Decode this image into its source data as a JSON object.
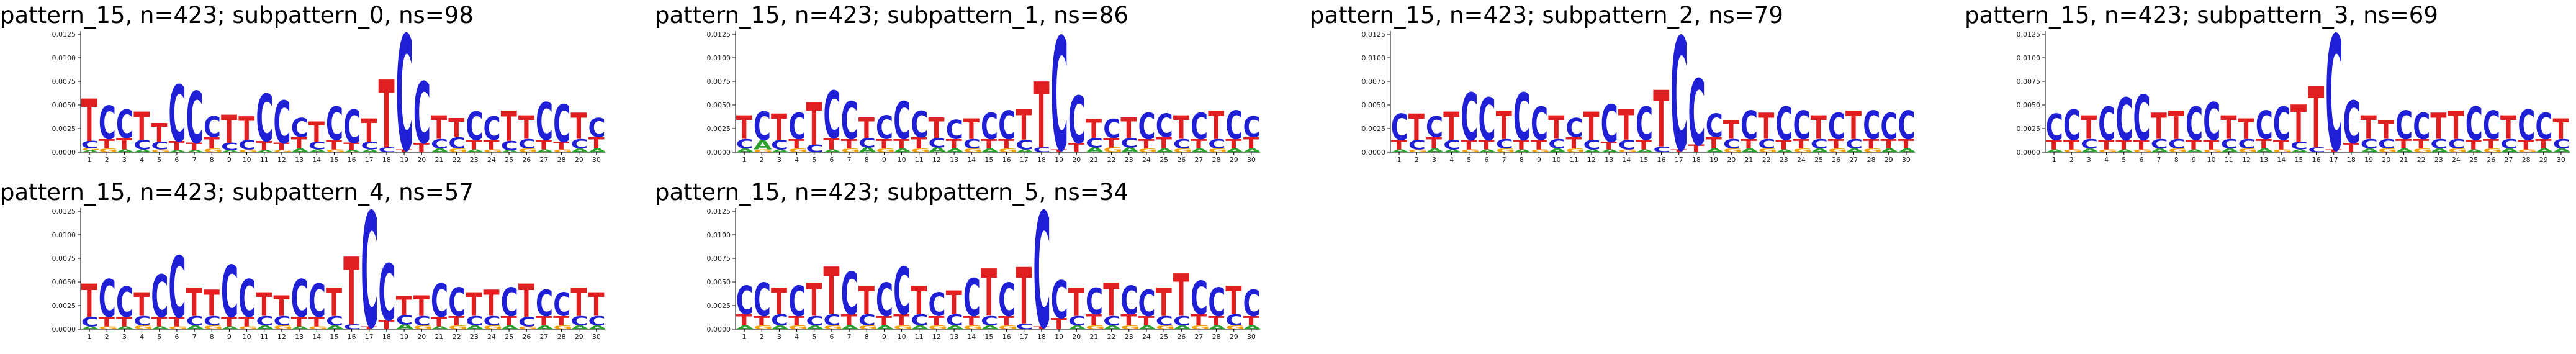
{
  "colors": {
    "A": "#2ca02c",
    "C": "#1f1fd6",
    "G": "#f0a000",
    "T": "#e02020"
  },
  "chart_data": [
    {
      "type": "logo",
      "title": "pattern_15, n=423; subpattern_0, ns=98",
      "ylim": [
        0,
        0.0125
      ],
      "yticks": [
        "0.0000",
        "0.0025",
        "0.0050",
        "0.0075",
        "0.0100",
        "0.0125"
      ],
      "positions": [
        "1",
        "2",
        "3",
        "4",
        "5",
        "6",
        "7",
        "8",
        "9",
        "10",
        "11",
        "12",
        "13",
        "14",
        "15",
        "16",
        "17",
        "18",
        "19",
        "20",
        "21",
        "22",
        "23",
        "24",
        "25",
        "26",
        "27",
        "28",
        "29",
        "30"
      ],
      "heights": [
        {
          "T": 0.0045,
          "C": 0.0008,
          "A": 0.0002,
          "G": 0.0002
        },
        {
          "C": 0.0035,
          "T": 0.001,
          "G": 0.0004
        },
        {
          "C": 0.003,
          "T": 0.0012,
          "A": 0.0003
        },
        {
          "T": 0.003,
          "C": 0.001,
          "A": 0.0003
        },
        {
          "T": 0.002,
          "C": 0.0008,
          "G": 0.0003
        },
        {
          "C": 0.006,
          "T": 0.001,
          "A": 0.0002
        },
        {
          "C": 0.0055,
          "T": 0.0008,
          "A": 0.0002
        },
        {
          "C": 0.0022,
          "T": 0.0012,
          "G": 0.0004
        },
        {
          "T": 0.003,
          "C": 0.0008,
          "A": 0.0002
        },
        {
          "T": 0.0025,
          "C": 0.001,
          "G": 0.0003
        },
        {
          "C": 0.005,
          "T": 0.001,
          "A": 0.0002
        },
        {
          "C": 0.0045,
          "T": 0.0008,
          "G": 0.0002
        },
        {
          "C": 0.002,
          "T": 0.0012,
          "A": 0.0004
        },
        {
          "T": 0.0022,
          "C": 0.0008,
          "A": 0.0003
        },
        {
          "C": 0.0035,
          "T": 0.001,
          "G": 0.0003
        },
        {
          "C": 0.0035,
          "T": 0.0008,
          "A": 0.0002
        },
        {
          "T": 0.0025,
          "C": 0.0008,
          "A": 0.0003
        },
        {
          "T": 0.0072,
          "C": 0.0005
        },
        {
          "C": 0.0122,
          "T": 0.0003
        },
        {
          "C": 0.0065,
          "T": 0.001
        },
        {
          "T": 0.0025,
          "C": 0.001,
          "A": 0.0004
        },
        {
          "T": 0.002,
          "C": 0.0012,
          "G": 0.0004
        },
        {
          "C": 0.003,
          "T": 0.001,
          "A": 0.0003
        },
        {
          "C": 0.0025,
          "T": 0.001,
          "G": 0.0003
        },
        {
          "T": 0.0032,
          "C": 0.001,
          "A": 0.0002
        },
        {
          "T": 0.0025,
          "C": 0.001,
          "G": 0.0004
        },
        {
          "C": 0.004,
          "T": 0.001,
          "A": 0.0003
        },
        {
          "C": 0.004,
          "T": 0.0008,
          "G": 0.0003
        },
        {
          "T": 0.0028,
          "C": 0.001,
          "A": 0.0004
        },
        {
          "C": 0.002,
          "T": 0.0012,
          "A": 0.0004
        }
      ]
    },
    {
      "type": "logo",
      "title": "pattern_15, n=423; subpattern_1, ns=86",
      "ylim": [
        0,
        0.0125
      ],
      "yticks": [
        "0.0000",
        "0.0025",
        "0.0050",
        "0.0075",
        "0.0100",
        "0.0125"
      ],
      "positions": [
        "1",
        "2",
        "3",
        "4",
        "5",
        "6",
        "7",
        "8",
        "9",
        "10",
        "11",
        "12",
        "13",
        "14",
        "15",
        "16",
        "17",
        "18",
        "19",
        "20",
        "21",
        "22",
        "23",
        "24",
        "25",
        "26",
        "27",
        "28",
        "29",
        "30"
      ],
      "heights": [
        {
          "T": 0.0025,
          "C": 0.001,
          "A": 0.0004
        },
        {
          "C": 0.003,
          "A": 0.001,
          "G": 0.0003
        },
        {
          "T": 0.0028,
          "C": 0.001,
          "A": 0.0003
        },
        {
          "C": 0.0028,
          "T": 0.001,
          "G": 0.0004
        },
        {
          "T": 0.0045,
          "C": 0.0008
        },
        {
          "C": 0.005,
          "T": 0.0012,
          "A": 0.0003
        },
        {
          "C": 0.004,
          "T": 0.001,
          "G": 0.0004
        },
        {
          "T": 0.0022,
          "C": 0.001,
          "A": 0.0005
        },
        {
          "C": 0.0025,
          "T": 0.001,
          "G": 0.0004
        },
        {
          "C": 0.004,
          "T": 0.001,
          "A": 0.0004
        },
        {
          "C": 0.0028,
          "T": 0.0012,
          "G": 0.0004
        },
        {
          "T": 0.0022,
          "C": 0.001,
          "A": 0.0005
        },
        {
          "C": 0.002,
          "T": 0.001,
          "A": 0.0004
        },
        {
          "T": 0.0022,
          "C": 0.001,
          "G": 0.0004
        },
        {
          "C": 0.0028,
          "T": 0.001,
          "A": 0.0004
        },
        {
          "C": 0.003,
          "T": 0.001,
          "G": 0.0004
        },
        {
          "T": 0.0032,
          "C": 0.001,
          "A": 0.0003
        },
        {
          "T": 0.007,
          "C": 0.0005
        },
        {
          "C": 0.012,
          "T": 0.0003
        },
        {
          "C": 0.005,
          "T": 0.001
        },
        {
          "T": 0.002,
          "C": 0.001,
          "A": 0.0005
        },
        {
          "C": 0.002,
          "T": 0.001,
          "G": 0.0005
        },
        {
          "T": 0.0022,
          "C": 0.001,
          "A": 0.0005
        },
        {
          "C": 0.0028,
          "T": 0.001,
          "G": 0.0004
        },
        {
          "C": 0.0025,
          "T": 0.0012,
          "A": 0.0004
        },
        {
          "T": 0.0025,
          "C": 0.001,
          "G": 0.0004
        },
        {
          "C": 0.0028,
          "T": 0.001,
          "A": 0.0004
        },
        {
          "T": 0.003,
          "C": 0.001,
          "G": 0.0004
        },
        {
          "C": 0.003,
          "T": 0.001,
          "A": 0.0004
        },
        {
          "C": 0.0022,
          "T": 0.0012,
          "A": 0.0004
        }
      ]
    },
    {
      "type": "logo",
      "title": "pattern_15, n=423; subpattern_2, ns=79",
      "ylim": [
        0,
        0.0125
      ],
      "yticks": [
        "0.0000",
        "0.0025",
        "0.0050",
        "0.0075",
        "0.0100",
        "0.0125"
      ],
      "positions": [
        "1",
        "2",
        "3",
        "4",
        "5",
        "6",
        "7",
        "8",
        "9",
        "10",
        "11",
        "12",
        "13",
        "14",
        "15",
        "16",
        "17",
        "18",
        "19",
        "20",
        "21",
        "22",
        "23",
        "24",
        "25",
        "26",
        "27",
        "28",
        "29",
        "30"
      ],
      "heights": [
        {
          "C": 0.0028,
          "T": 0.001,
          "A": 0.0003
        },
        {
          "T": 0.0028,
          "C": 0.001,
          "G": 0.0003
        },
        {
          "C": 0.0022,
          "T": 0.0012,
          "A": 0.0004
        },
        {
          "T": 0.003,
          "C": 0.001,
          "A": 0.0003
        },
        {
          "C": 0.005,
          "T": 0.001,
          "G": 0.0003
        },
        {
          "C": 0.0045,
          "T": 0.001,
          "A": 0.0003
        },
        {
          "T": 0.003,
          "C": 0.001,
          "G": 0.0004
        },
        {
          "C": 0.005,
          "T": 0.001,
          "A": 0.0003
        },
        {
          "C": 0.0035,
          "T": 0.001,
          "G": 0.0003
        },
        {
          "T": 0.0025,
          "C": 0.001,
          "A": 0.0004
        },
        {
          "C": 0.002,
          "T": 0.0012,
          "G": 0.0004
        },
        {
          "T": 0.003,
          "C": 0.001,
          "A": 0.0003
        },
        {
          "C": 0.004,
          "T": 0.0008,
          "A": 0.0003
        },
        {
          "T": 0.0032,
          "C": 0.001,
          "G": 0.0003
        },
        {
          "C": 0.0035,
          "T": 0.001,
          "A": 0.0003
        },
        {
          "T": 0.006,
          "C": 0.0006
        },
        {
          "C": 0.012,
          "T": 0.0003
        },
        {
          "C": 0.007,
          "T": 0.0008
        },
        {
          "C": 0.0025,
          "T": 0.0012,
          "A": 0.0004
        },
        {
          "T": 0.002,
          "C": 0.001,
          "G": 0.0004
        },
        {
          "C": 0.003,
          "T": 0.001,
          "A": 0.0004
        },
        {
          "T": 0.0028,
          "C": 0.001,
          "G": 0.0004
        },
        {
          "C": 0.0035,
          "T": 0.001,
          "A": 0.0003
        },
        {
          "C": 0.003,
          "T": 0.001,
          "G": 0.0004
        },
        {
          "T": 0.0025,
          "C": 0.001,
          "A": 0.0004
        },
        {
          "C": 0.0028,
          "T": 0.001,
          "G": 0.0004
        },
        {
          "T": 0.003,
          "C": 0.001,
          "A": 0.0004
        },
        {
          "C": 0.003,
          "T": 0.001,
          "G": 0.0004
        },
        {
          "C": 0.0028,
          "T": 0.001,
          "A": 0.0004
        },
        {
          "C": 0.003,
          "T": 0.001,
          "A": 0.0004
        }
      ]
    },
    {
      "type": "logo",
      "title": "pattern_15, n=423; subpattern_3, ns=69",
      "ylim": [
        0,
        0.0125
      ],
      "yticks": [
        "0.0000",
        "0.0025",
        "0.0050",
        "0.0075",
        "0.0100",
        "0.0125"
      ],
      "positions": [
        "1",
        "2",
        "3",
        "4",
        "5",
        "6",
        "7",
        "8",
        "9",
        "10",
        "11",
        "12",
        "13",
        "14",
        "15",
        "16",
        "17",
        "18",
        "19",
        "20",
        "21",
        "22",
        "23",
        "24",
        "25",
        "26",
        "27",
        "28",
        "29",
        "30"
      ],
      "heights": [
        {
          "C": 0.0028,
          "T": 0.001,
          "A": 0.0003
        },
        {
          "C": 0.0032,
          "T": 0.001,
          "G": 0.0003
        },
        {
          "T": 0.0025,
          "C": 0.001,
          "A": 0.0004
        },
        {
          "C": 0.0035,
          "T": 0.001,
          "G": 0.0003
        },
        {
          "C": 0.0045,
          "T": 0.001,
          "A": 0.0003
        },
        {
          "C": 0.0048,
          "T": 0.001,
          "G": 0.0003
        },
        {
          "T": 0.0028,
          "C": 0.001,
          "A": 0.0004
        },
        {
          "T": 0.003,
          "C": 0.001,
          "G": 0.0004
        },
        {
          "C": 0.0035,
          "T": 0.001,
          "A": 0.0003
        },
        {
          "C": 0.004,
          "T": 0.001,
          "G": 0.0003
        },
        {
          "T": 0.0025,
          "C": 0.001,
          "A": 0.0004
        },
        {
          "T": 0.0022,
          "C": 0.001,
          "G": 0.0004
        },
        {
          "C": 0.003,
          "T": 0.001,
          "A": 0.0004
        },
        {
          "C": 0.0035,
          "T": 0.001,
          "G": 0.0003
        },
        {
          "T": 0.004,
          "C": 0.0008,
          "A": 0.0003
        },
        {
          "T": 0.0065,
          "C": 0.0005
        },
        {
          "C": 0.0122,
          "T": 0.0003
        },
        {
          "C": 0.0045,
          "T": 0.001
        },
        {
          "T": 0.0025,
          "C": 0.001,
          "A": 0.0004
        },
        {
          "T": 0.002,
          "C": 0.001,
          "G": 0.0004
        },
        {
          "C": 0.003,
          "T": 0.001,
          "A": 0.0004
        },
        {
          "C": 0.0028,
          "T": 0.001,
          "G": 0.0004
        },
        {
          "T": 0.0028,
          "C": 0.001,
          "A": 0.0004
        },
        {
          "T": 0.003,
          "C": 0.001,
          "G": 0.0004
        },
        {
          "C": 0.0035,
          "T": 0.001,
          "A": 0.0003
        },
        {
          "C": 0.003,
          "T": 0.001,
          "G": 0.0004
        },
        {
          "T": 0.0025,
          "C": 0.001,
          "A": 0.0004
        },
        {
          "C": 0.0032,
          "T": 0.001,
          "G": 0.0003
        },
        {
          "C": 0.0028,
          "T": 0.001,
          "A": 0.0004
        },
        {
          "T": 0.0022,
          "C": 0.001,
          "A": 0.0004
        }
      ]
    },
    {
      "type": "logo",
      "title": "pattern_15, n=423; subpattern_4, ns=57",
      "ylim": [
        0,
        0.0125
      ],
      "yticks": [
        "0.0000",
        "0.0025",
        "0.0050",
        "0.0075",
        "0.0100",
        "0.0125"
      ],
      "positions": [
        "1",
        "2",
        "3",
        "4",
        "5",
        "6",
        "7",
        "8",
        "9",
        "10",
        "11",
        "12",
        "13",
        "14",
        "15",
        "16",
        "17",
        "18",
        "19",
        "20",
        "21",
        "22",
        "23",
        "24",
        "25",
        "26",
        "27",
        "28",
        "29",
        "30"
      ],
      "heights": [
        {
          "T": 0.0035,
          "C": 0.001,
          "A": 0.0003
        },
        {
          "C": 0.004,
          "T": 0.001,
          "G": 0.0003
        },
        {
          "C": 0.0032,
          "T": 0.001,
          "A": 0.0003
        },
        {
          "T": 0.0025,
          "C": 0.001,
          "G": 0.0004
        },
        {
          "C": 0.0045,
          "T": 0.001,
          "A": 0.0003
        },
        {
          "C": 0.0065,
          "T": 0.001,
          "G": 0.0003
        },
        {
          "T": 0.003,
          "C": 0.001,
          "A": 0.0004
        },
        {
          "T": 0.0028,
          "C": 0.001,
          "G": 0.0004
        },
        {
          "C": 0.0055,
          "T": 0.001,
          "A": 0.0003
        },
        {
          "C": 0.004,
          "T": 0.001,
          "G": 0.0003
        },
        {
          "T": 0.0025,
          "C": 0.001,
          "A": 0.0004
        },
        {
          "T": 0.0022,
          "C": 0.001,
          "G": 0.0004
        },
        {
          "C": 0.004,
          "T": 0.001,
          "A": 0.0003
        },
        {
          "C": 0.0035,
          "T": 0.001,
          "G": 0.0003
        },
        {
          "T": 0.003,
          "C": 0.001,
          "A": 0.0004
        },
        {
          "T": 0.0072,
          "C": 0.0005
        },
        {
          "C": 0.0122,
          "T": 0.0003
        },
        {
          "C": 0.006,
          "T": 0.001
        },
        {
          "T": 0.002,
          "C": 0.001,
          "A": 0.0005
        },
        {
          "T": 0.0022,
          "C": 0.001,
          "G": 0.0004
        },
        {
          "C": 0.0035,
          "T": 0.001,
          "A": 0.0003
        },
        {
          "C": 0.003,
          "T": 0.001,
          "G": 0.0004
        },
        {
          "T": 0.0025,
          "C": 0.001,
          "A": 0.0004
        },
        {
          "T": 0.0028,
          "C": 0.001,
          "G": 0.0004
        },
        {
          "C": 0.003,
          "T": 0.001,
          "A": 0.0004
        },
        {
          "T": 0.0035,
          "C": 0.001,
          "G": 0.0003
        },
        {
          "C": 0.0028,
          "T": 0.001,
          "A": 0.0004
        },
        {
          "C": 0.0025,
          "T": 0.001,
          "G": 0.0004
        },
        {
          "T": 0.003,
          "C": 0.001,
          "A": 0.0004
        },
        {
          "T": 0.0025,
          "C": 0.001,
          "A": 0.0004
        }
      ]
    },
    {
      "type": "logo",
      "title": "pattern_15, n=423; subpattern_5, ns=34",
      "ylim": [
        0,
        0.0125
      ],
      "yticks": [
        "0.0000",
        "0.0025",
        "0.0050",
        "0.0075",
        "0.0100",
        "0.0125"
      ],
      "positions": [
        "1",
        "2",
        "3",
        "4",
        "5",
        "6",
        "7",
        "8",
        "9",
        "10",
        "11",
        "12",
        "13",
        "14",
        "15",
        "16",
        "17",
        "18",
        "19",
        "20",
        "21",
        "22",
        "23",
        "24",
        "25",
        "26",
        "27",
        "28",
        "29",
        "30"
      ],
      "heights": [
        {
          "C": 0.003,
          "T": 0.0012,
          "A": 0.0004
        },
        {
          "C": 0.0035,
          "T": 0.001,
          "G": 0.0004
        },
        {
          "T": 0.0028,
          "C": 0.0012,
          "A": 0.0004
        },
        {
          "C": 0.0032,
          "T": 0.001,
          "G": 0.0004
        },
        {
          "T": 0.0035,
          "C": 0.001,
          "A": 0.0004
        },
        {
          "T": 0.005,
          "C": 0.0012,
          "G": 0.0004
        },
        {
          "C": 0.0045,
          "T": 0.0012,
          "A": 0.0004
        },
        {
          "T": 0.003,
          "C": 0.0012,
          "G": 0.0004
        },
        {
          "C": 0.0035,
          "T": 0.001,
          "A": 0.0004
        },
        {
          "C": 0.005,
          "T": 0.0012,
          "G": 0.0004
        },
        {
          "T": 0.003,
          "C": 0.0012,
          "A": 0.0004
        },
        {
          "C": 0.0025,
          "T": 0.001,
          "G": 0.0004
        },
        {
          "T": 0.0025,
          "C": 0.0012,
          "A": 0.0004
        },
        {
          "C": 0.004,
          "T": 0.001,
          "G": 0.0004
        },
        {
          "T": 0.005,
          "C": 0.001,
          "A": 0.0004
        },
        {
          "C": 0.0035,
          "T": 0.001,
          "G": 0.0004
        },
        {
          "T": 0.006,
          "C": 0.0006
        },
        {
          "C": 0.0122,
          "T": 0.0003
        },
        {
          "C": 0.004,
          "T": 0.0012
        },
        {
          "T": 0.003,
          "C": 0.001,
          "A": 0.0004
        },
        {
          "C": 0.0028,
          "T": 0.0012,
          "G": 0.0004
        },
        {
          "T": 0.0035,
          "C": 0.001,
          "A": 0.0004
        },
        {
          "C": 0.003,
          "T": 0.0012,
          "G": 0.0004
        },
        {
          "C": 0.0028,
          "T": 0.001,
          "A": 0.0004
        },
        {
          "T": 0.003,
          "C": 0.001,
          "G": 0.0004
        },
        {
          "T": 0.0045,
          "C": 0.001,
          "A": 0.0004
        },
        {
          "C": 0.0035,
          "T": 0.0012,
          "G": 0.0004
        },
        {
          "C": 0.003,
          "T": 0.001,
          "A": 0.0004
        },
        {
          "T": 0.003,
          "C": 0.0012,
          "G": 0.0004
        },
        {
          "C": 0.0028,
          "T": 0.001,
          "A": 0.0004
        }
      ]
    }
  ]
}
